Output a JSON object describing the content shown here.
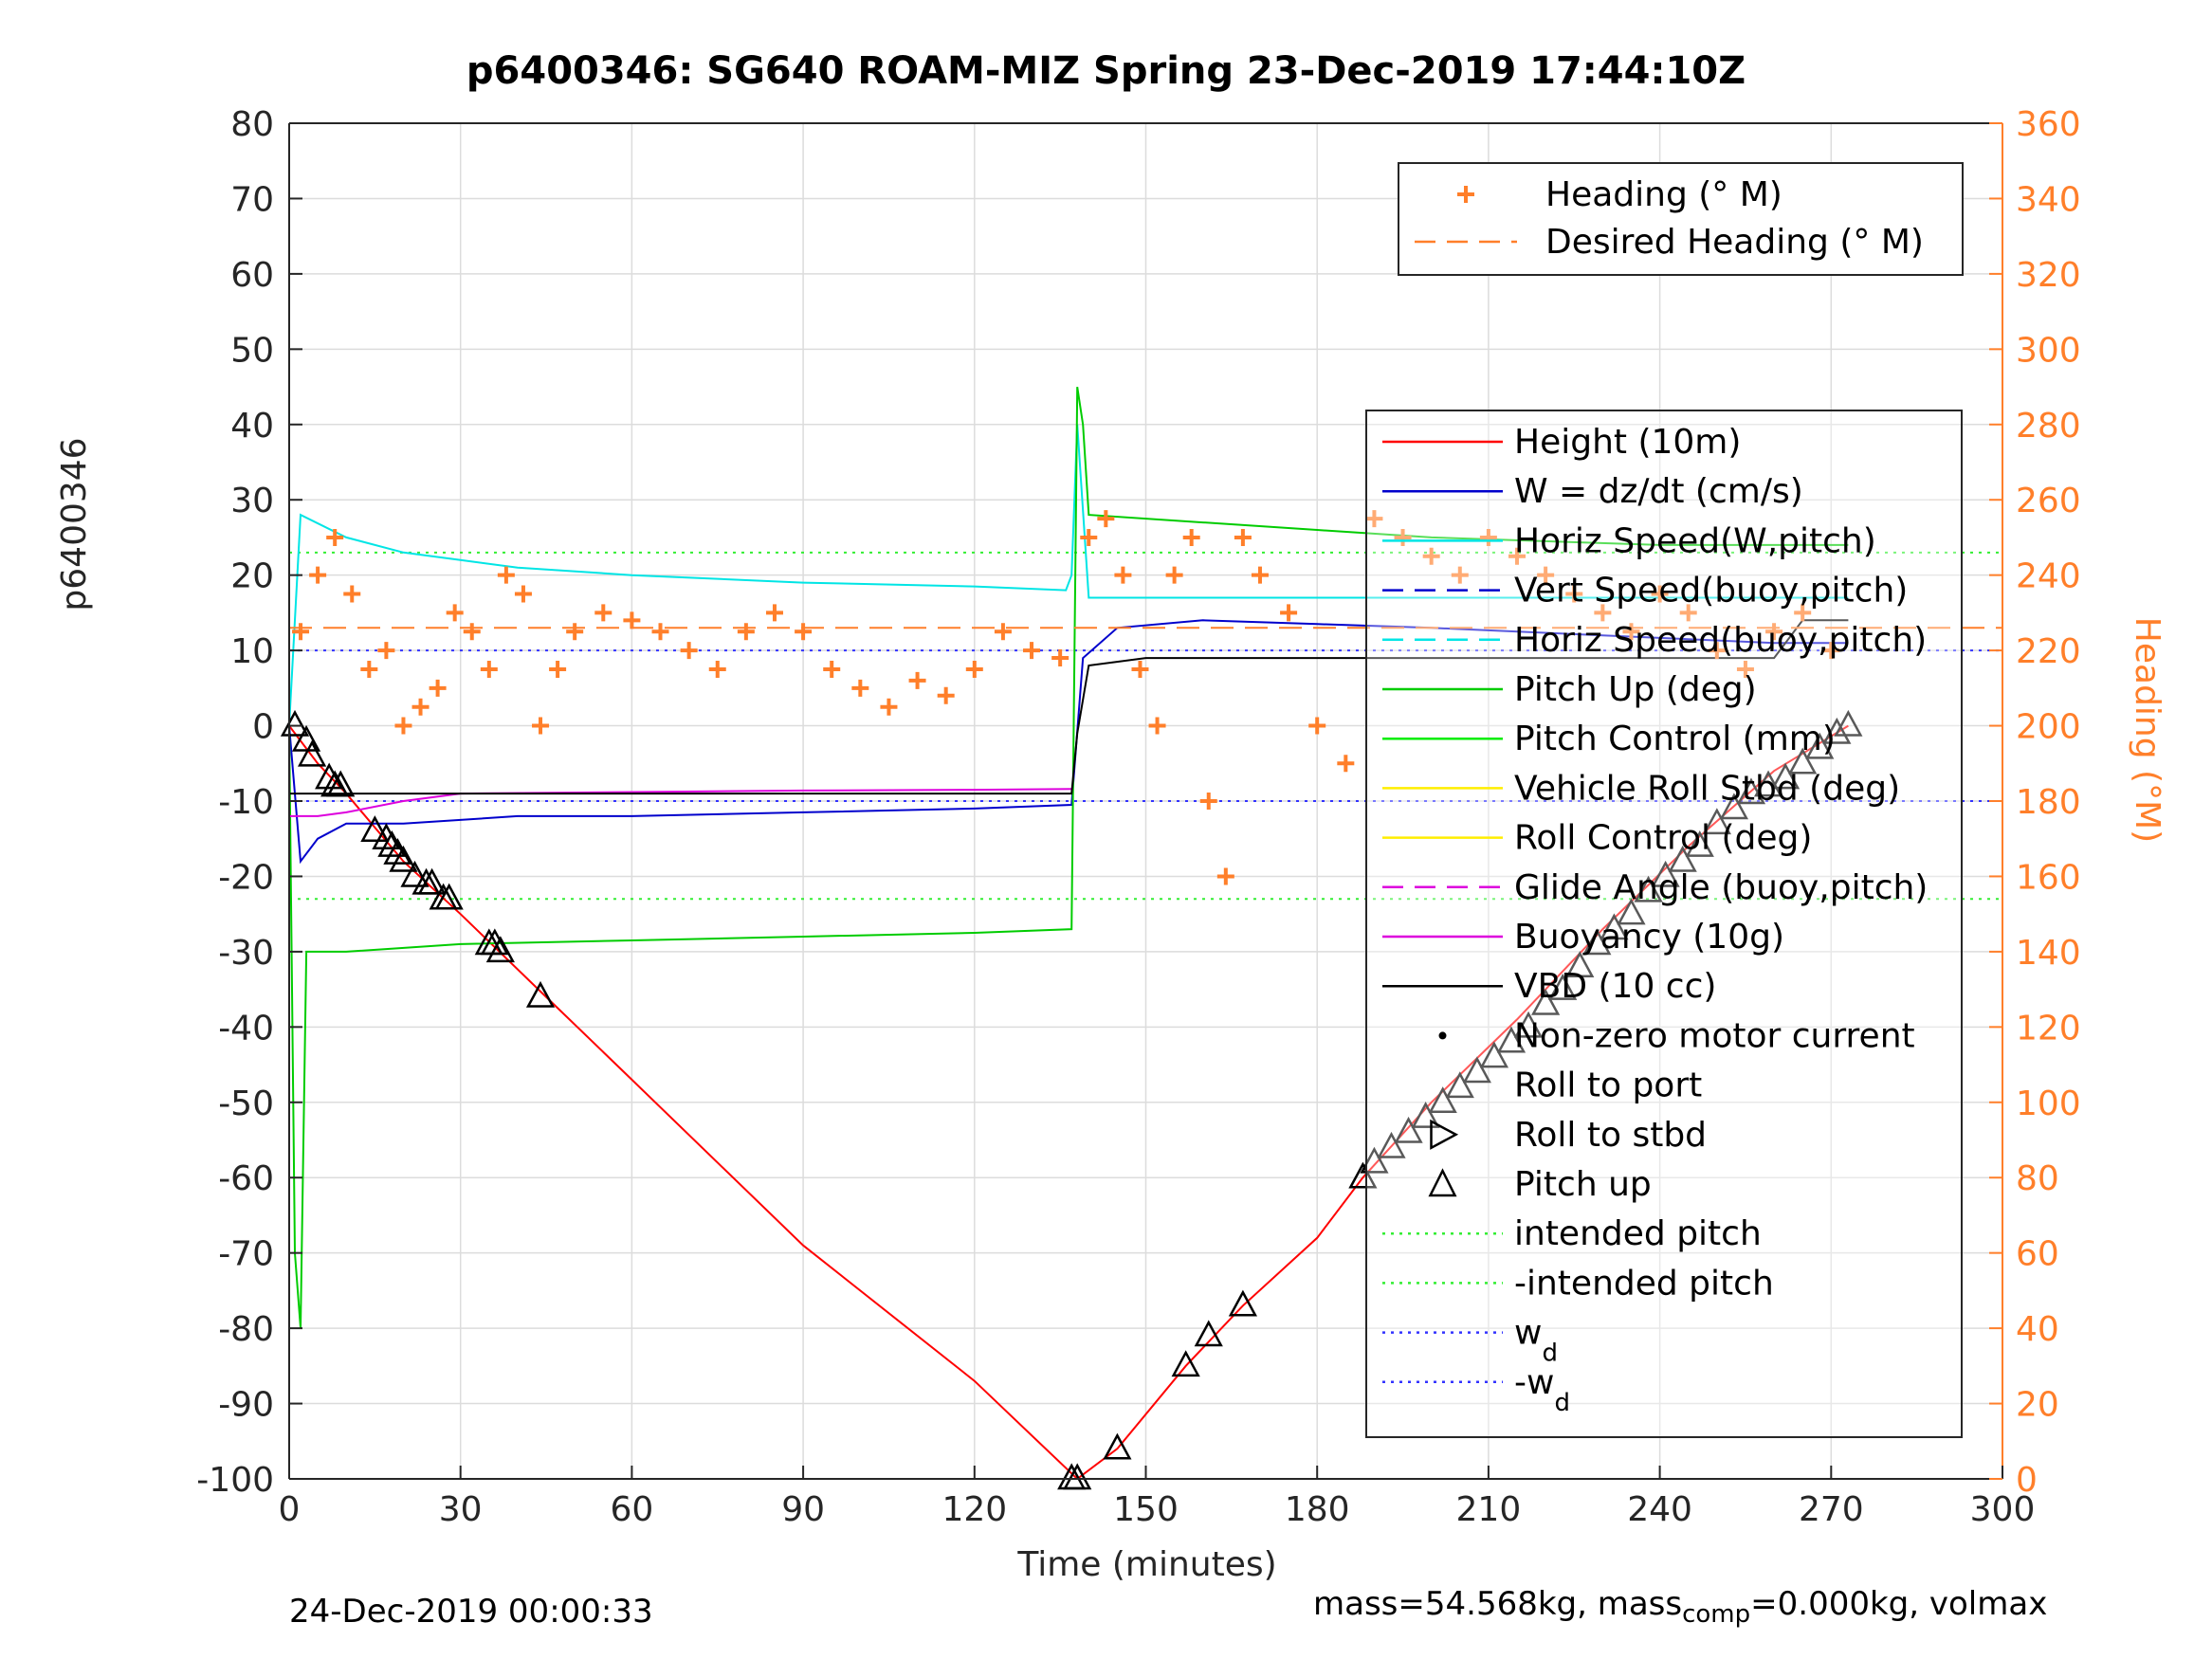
{
  "chart_data": {
    "type": "line",
    "title": "p6400346: SG640 ROAM-MIZ Spring 23-Dec-2019 17:44:10Z",
    "xlabel": "Time (minutes)",
    "ylabel": "p6400346",
    "y2label": "Heading (°M)",
    "xlim": [
      0,
      300
    ],
    "ylim": [
      -100,
      80
    ],
    "y2lim": [
      0,
      360
    ],
    "xticks": [
      "0",
      "30",
      "60",
      "90",
      "120",
      "150",
      "180",
      "210",
      "240",
      "270",
      "300"
    ],
    "yticks": [
      "80",
      "70",
      "60",
      "50",
      "40",
      "30",
      "20",
      "10",
      "0",
      "-10",
      "-20",
      "-30",
      "-40",
      "-50",
      "-60",
      "-70",
      "-80",
      "-90",
      "-100"
    ],
    "y2ticks": [
      "360",
      "340",
      "320",
      "300",
      "280",
      "260",
      "240",
      "220",
      "200",
      "180",
      "160",
      "140",
      "120",
      "100",
      "80",
      "60",
      "40",
      "20",
      "0"
    ],
    "grid": true,
    "legend_top": [
      {
        "label": "Heading (° M)",
        "color": "#ff7f2a",
        "style": "plus"
      },
      {
        "label": "Desired Heading (° M)",
        "color": "#ff7f2a",
        "style": "dash"
      }
    ],
    "legend_main": [
      {
        "label": "Height (10m)",
        "color": "#ff0000",
        "style": "solid"
      },
      {
        "label": "W = dz/dt (cm/s)",
        "color": "#0000cc",
        "style": "solid"
      },
      {
        "label": "Horiz Speed(W,pitch)",
        "color": "#00e5e5",
        "style": "solid"
      },
      {
        "label": "Vert Speed(buoy,pitch)",
        "color": "#0000cc",
        "style": "dash"
      },
      {
        "label": "Horiz Speed(buoy,pitch)",
        "color": "#00e5e5",
        "style": "dash"
      },
      {
        "label": "Pitch Up (deg)",
        "color": "#00cc00",
        "style": "solid"
      },
      {
        "label": "Pitch Control (mm)",
        "color": "#00ee00",
        "style": "solid"
      },
      {
        "label": "Vehicle Roll Stbd (deg)",
        "color": "#ffee00",
        "style": "solid"
      },
      {
        "label": "Roll Control (deg)",
        "color": "#ffee00",
        "style": "solid"
      },
      {
        "label": "Glide Angle (buoy,pitch)",
        "color": "#dd00dd",
        "style": "dash"
      },
      {
        "label": "Buoyancy (10g)",
        "color": "#dd00dd",
        "style": "solid"
      },
      {
        "label": "VBD (10 cc)",
        "color": "#000000",
        "style": "solid"
      },
      {
        "label": "Non-zero motor current",
        "color": "#000000",
        "style": "dot"
      },
      {
        "label": "Roll to port",
        "color": "#000000",
        "style": "none"
      },
      {
        "label": "Roll to stbd",
        "color": "#000000",
        "style": "tri-right"
      },
      {
        "label": "Pitch up",
        "color": "#000000",
        "style": "tri-up"
      },
      {
        "label": "intended pitch",
        "color": "#33ee33",
        "style": "dotted"
      },
      {
        "label": "-intended pitch",
        "color": "#33ee33",
        "style": "dotted"
      },
      {
        "label": "w",
        "sub": "d",
        "color": "#3333ff",
        "style": "dotted"
      },
      {
        "label": "-w",
        "sub": "d",
        "color": "#3333ff",
        "style": "dotted"
      }
    ],
    "series": [
      {
        "name": "Height (10m)",
        "color": "#ff0000",
        "x": [
          0,
          5,
          10,
          20,
          30,
          45,
          60,
          90,
          120,
          138,
          145,
          157,
          167,
          180,
          188,
          200,
          215,
          230,
          245,
          260,
          273
        ],
        "y": [
          0,
          -5,
          -9,
          -18,
          -25,
          -36,
          -47,
          -69,
          -87,
          -100,
          -96,
          -85,
          -77,
          -68,
          -60,
          -50,
          -39,
          -27,
          -16,
          -6,
          0
        ]
      },
      {
        "name": "W = dz/dt (cm/s)",
        "color": "#0000cc",
        "x": [
          0,
          2,
          5,
          10,
          20,
          40,
          60,
          90,
          120,
          137,
          139,
          145,
          160,
          180,
          200,
          230,
          260,
          273
        ],
        "y": [
          0,
          -18,
          -15,
          -13,
          -13,
          -12,
          -12,
          -11.5,
          -11,
          -10.5,
          9,
          13,
          14,
          13.5,
          13,
          12,
          11,
          11
        ]
      },
      {
        "name": "Horiz Speed(W,pitch)",
        "color": "#00e5e5",
        "x": [
          0,
          2,
          10,
          20,
          30,
          40,
          60,
          90,
          120,
          136,
          137,
          138,
          140,
          160,
          180,
          200,
          230,
          260,
          273
        ],
        "y": [
          0,
          28,
          25,
          23,
          22,
          21,
          20,
          19,
          18.5,
          18,
          20,
          40,
          17,
          17,
          17,
          17,
          17,
          17,
          17
        ]
      },
      {
        "name": "Pitch Up (deg)",
        "color": "#00cc00",
        "x": [
          0,
          1,
          2,
          3,
          10,
          30,
          60,
          90,
          120,
          137,
          138,
          139,
          140,
          160,
          180,
          200,
          240,
          273
        ],
        "y": [
          0,
          -70,
          -80,
          -30,
          -30,
          -29,
          -28.5,
          -28,
          -27.5,
          -27,
          45,
          40,
          28,
          27,
          26,
          25,
          24,
          24
        ]
      },
      {
        "name": "Buoyancy (10g)",
        "color": "#dd00dd",
        "x": [
          0,
          5,
          10,
          20,
          30,
          60,
          90,
          120,
          137
        ],
        "y": [
          -12,
          -12,
          -11.5,
          -10,
          -9,
          -8.8,
          -8.6,
          -8.5,
          -8.4
        ]
      },
      {
        "name": "VBD (10 cc)",
        "color": "#000000",
        "x": [
          0,
          5,
          10,
          137,
          138,
          140,
          150,
          180,
          210,
          240,
          260,
          265,
          273
        ],
        "y": [
          -9,
          -9,
          -9,
          -9,
          -1,
          8,
          9,
          9,
          9,
          9,
          9,
          14,
          14
        ]
      },
      {
        "name": "Heading (° M)",
        "color": "#ff7f2a",
        "axis": "right",
        "marker": "plus",
        "x": [
          2,
          5,
          8,
          11,
          14,
          17,
          20,
          23,
          26,
          29,
          32,
          35,
          38,
          41,
          44,
          47,
          50,
          55,
          60,
          65,
          70,
          75,
          80,
          85,
          90,
          95,
          100,
          105,
          110,
          115,
          120,
          125,
          130,
          135,
          140,
          143,
          146,
          149,
          152,
          155,
          158,
          161,
          164,
          167,
          170,
          175,
          180,
          185,
          190,
          195,
          200,
          205,
          210,
          215,
          220,
          225,
          230,
          235,
          240,
          245,
          250,
          255,
          260,
          265,
          270
        ],
        "y": [
          225,
          240,
          250,
          235,
          215,
          220,
          200,
          205,
          210,
          230,
          225,
          215,
          240,
          235,
          200,
          215,
          225,
          230,
          228,
          225,
          220,
          215,
          225,
          230,
          225,
          215,
          210,
          205,
          212,
          208,
          215,
          225,
          220,
          218,
          250,
          255,
          240,
          215,
          200,
          240,
          250,
          180,
          160,
          250,
          240,
          230,
          200,
          190,
          255,
          250,
          245,
          240,
          250,
          245,
          240,
          235,
          230,
          225,
          235,
          230,
          220,
          215,
          225,
          230,
          220
        ]
      },
      {
        "name": "Desired Heading (° M)",
        "color": "#ff7f2a",
        "axis": "right",
        "style": "dash",
        "x": [
          0,
          300
        ],
        "y": [
          226,
          226
        ]
      }
    ],
    "reference_lines": [
      {
        "name": "intended pitch",
        "color": "#33ee33",
        "y": 23
      },
      {
        "name": "-intended pitch",
        "color": "#33ee33",
        "y": -23
      },
      {
        "name": "w_d",
        "color": "#3333ff",
        "y": 10
      },
      {
        "name": "-w_d",
        "color": "#3333ff",
        "y": -10
      }
    ],
    "markers": {
      "pitch_up": {
        "x": [
          1,
          3,
          4,
          7,
          8,
          9,
          15,
          17,
          18,
          19,
          20,
          22,
          24,
          25,
          27,
          28,
          35,
          36,
          37,
          44,
          137,
          138,
          145,
          157,
          161,
          167,
          188,
          190,
          193,
          196,
          199,
          202,
          205,
          208,
          211,
          214,
          217,
          220,
          223,
          226,
          229,
          232,
          235,
          238,
          241,
          244,
          247,
          250,
          253,
          256,
          259,
          262,
          265,
          268,
          271,
          273
        ],
        "y": [
          0,
          -2,
          -4,
          -7,
          -8,
          -8,
          -14,
          -15,
          -16,
          -17,
          -18,
          -20,
          -21,
          -21,
          -23,
          -23,
          -29,
          -29,
          -30,
          -36,
          -100,
          -100,
          -96,
          -85,
          -81,
          -77,
          -60,
          -58,
          -56,
          -54,
          -52,
          -50,
          -48,
          -46,
          -44,
          -42,
          -40,
          -37,
          -35,
          -32,
          -29,
          -27,
          -25,
          -22,
          -20,
          -18,
          -16,
          -13,
          -11,
          -9,
          -8,
          -7,
          -5,
          -3,
          -1,
          0
        ]
      }
    }
  },
  "footer": {
    "timestamp": "24-Dec-2019 00:00:33",
    "mass_text_a": "mass=54.568kg, mass",
    "mass_sub": "comp",
    "mass_text_b": "=0.000kg, volmax"
  }
}
